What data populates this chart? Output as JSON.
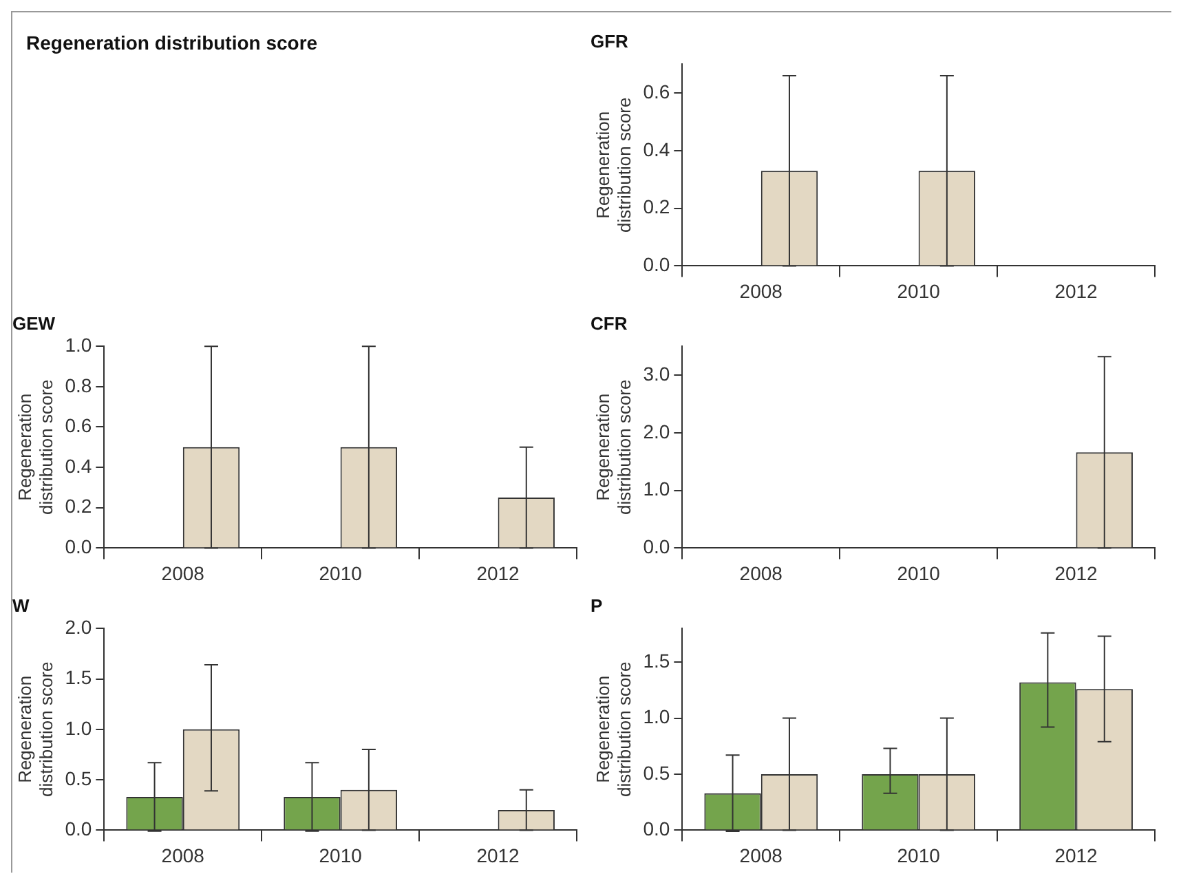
{
  "chart_data": [
    {
      "type": "other",
      "title": "Regeneration distribution score"
    },
    {
      "type": "bar",
      "title": "GFR",
      "ylabel": "Regeneration distribution score",
      "categories": [
        "2008",
        "2010",
        "2012"
      ],
      "series": [
        {
          "color": "#74a44c",
          "values": [
            0,
            0,
            0
          ]
        },
        {
          "color": "#e3d8c3",
          "values": [
            0.33,
            0.33,
            0
          ],
          "errors": [
            0.33,
            0.33,
            null
          ]
        }
      ],
      "ylim": [
        0,
        0.7
      ],
      "yticks": [
        {
          "value": 0,
          "label": "0.0"
        },
        {
          "value": 0.2,
          "label": "0.2"
        },
        {
          "value": 0.4,
          "label": "0.4"
        },
        {
          "value": 0.6,
          "label": "0.6"
        }
      ]
    },
    {
      "type": "bar",
      "title": "GEW",
      "ylabel": "Regeneration distribution score",
      "categories": [
        "2008",
        "2010",
        "2012"
      ],
      "series": [
        {
          "color": "#74a44c",
          "values": [
            0,
            0,
            0
          ]
        },
        {
          "color": "#e3d8c3",
          "values": [
            0.5,
            0.5,
            0.25
          ],
          "errors": [
            0.5,
            0.5,
            0.25
          ]
        }
      ],
      "ylim": [
        0,
        1
      ],
      "yticks": [
        {
          "value": 0,
          "label": "0.0"
        },
        {
          "value": 0.2,
          "label": "0.2"
        },
        {
          "value": 0.4,
          "label": "0.4"
        },
        {
          "value": 0.6,
          "label": "0.6"
        },
        {
          "value": 0.8,
          "label": "0.8"
        },
        {
          "value": 1,
          "label": "1.0"
        }
      ]
    },
    {
      "type": "bar",
      "title": "CFR",
      "ylabel": "Regeneration distribution score",
      "categories": [
        "2008",
        "2010",
        "2012"
      ],
      "series": [
        {
          "color": "#74a44c",
          "values": [
            0,
            0,
            0
          ]
        },
        {
          "color": "#e3d8c3",
          "values": [
            0,
            0,
            1.66
          ],
          "errors": [
            null,
            null,
            1.66
          ]
        }
      ],
      "ylim": [
        0,
        3.5
      ],
      "yticks": [
        {
          "value": 0,
          "label": "0.0"
        },
        {
          "value": 1,
          "label": "1.0"
        },
        {
          "value": 2,
          "label": "2.0"
        },
        {
          "value": 3,
          "label": "3.0"
        }
      ]
    },
    {
      "type": "bar",
      "title": "W",
      "ylabel": "Regeneration distribution score",
      "categories": [
        "2008",
        "2010",
        "2012"
      ],
      "series": [
        {
          "color": "#74a44c",
          "values": [
            0.33,
            0.33,
            0
          ],
          "errors": [
            0.34,
            0.34,
            null
          ]
        },
        {
          "color": "#e3d8c3",
          "values": [
            1.0,
            0.4,
            0.2
          ],
          "errors": [
            [
              0.39,
              1.64
            ],
            0.4,
            0.2
          ]
        }
      ],
      "ylim": [
        0,
        2
      ],
      "yticks": [
        {
          "value": 0,
          "label": "0.0"
        },
        {
          "value": 0.5,
          "label": "0.5"
        },
        {
          "value": 1,
          "label": "1.0"
        },
        {
          "value": 1.5,
          "label": "1.5"
        },
        {
          "value": 2,
          "label": "2.0"
        }
      ]
    },
    {
      "type": "bar",
      "title": "P",
      "ylabel": "Regeneration distribution score",
      "categories": [
        "2008",
        "2010",
        "2012"
      ],
      "series": [
        {
          "color": "#74a44c",
          "values": [
            0.33,
            0.5,
            1.32
          ],
          "errors": [
            0.34,
            [
              0.33,
              0.73
            ],
            [
              0.92,
              1.76
            ]
          ]
        },
        {
          "color": "#e3d8c3",
          "values": [
            0.5,
            0.5,
            1.26
          ],
          "errors": [
            0.5,
            0.5,
            [
              0.79,
              1.73
            ]
          ]
        }
      ],
      "ylim": [
        0,
        1.8
      ],
      "yticks": [
        {
          "value": 0,
          "label": "0.0"
        },
        {
          "value": 0.5,
          "label": "0.5"
        },
        {
          "value": 1,
          "label": "1.0"
        },
        {
          "value": 1.5,
          "label": "1.5"
        }
      ]
    }
  ]
}
